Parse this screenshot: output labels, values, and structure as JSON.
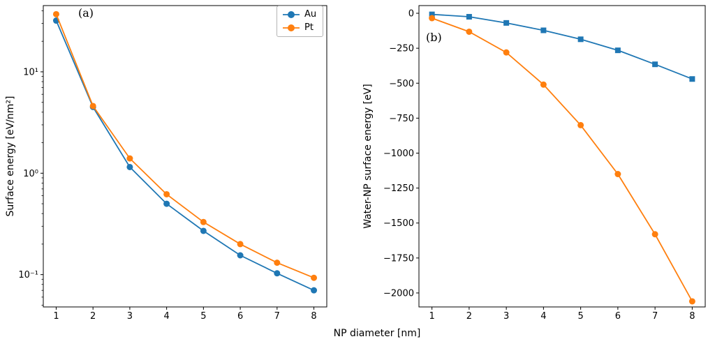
{
  "xlabel": "NP diameter [nm]",
  "legend": {
    "position": "upper right",
    "entries": [
      "Au",
      "Pt"
    ]
  },
  "colors": {
    "au": "#1f77b4",
    "pt": "#ff7f0e"
  },
  "chart_data": [
    {
      "type": "line",
      "panel_label": "(a)",
      "title": "",
      "xlabel": "NP diameter [nm]",
      "ylabel": "Surface energy [eV/nm²]",
      "yscale": "log",
      "grid": false,
      "xlim": [
        0.65,
        8.35
      ],
      "ylim": [
        0.048,
        45
      ],
      "x": [
        1,
        2,
        3,
        4,
        5,
        6,
        7,
        8
      ],
      "xticks": [
        1,
        2,
        3,
        4,
        5,
        6,
        7,
        8
      ],
      "xtick_labels": [
        "1",
        "2",
        "3",
        "4",
        "5",
        "6",
        "7",
        "8"
      ],
      "yticks": {
        "values": [
          10,
          1,
          0.1
        ],
        "labels": [
          "10¹",
          "10⁰",
          "10⁻¹"
        ]
      },
      "series": [
        {
          "name": "Au",
          "color": "#1f77b4",
          "marker": "circle",
          "values": [
            32,
            4.5,
            1.15,
            0.5,
            0.27,
            0.155,
            0.103,
            0.07
          ]
        },
        {
          "name": "Pt",
          "color": "#ff7f0e",
          "marker": "circle",
          "values": [
            37,
            4.6,
            1.4,
            0.62,
            0.33,
            0.2,
            0.131,
            0.093
          ]
        }
      ]
    },
    {
      "type": "line",
      "panel_label": "(b)",
      "title": "",
      "xlabel": "NP diameter [nm]",
      "ylabel": "Water-NP surface energy [eV]",
      "yscale": "linear",
      "grid": false,
      "xlim": [
        0.65,
        8.35
      ],
      "ylim": [
        -2100,
        55
      ],
      "x": [
        1,
        2,
        3,
        4,
        5,
        6,
        7,
        8
      ],
      "xticks": [
        1,
        2,
        3,
        4,
        5,
        6,
        7,
        8
      ],
      "xtick_labels": [
        "1",
        "2",
        "3",
        "4",
        "5",
        "6",
        "7",
        "8"
      ],
      "yticks": {
        "values": [
          0,
          -250,
          -500,
          -750,
          -1000,
          -1250,
          -1500,
          -1750,
          -2000
        ],
        "labels": [
          "0",
          "−250",
          "−500",
          "−750",
          "−1000",
          "−1250",
          "−1500",
          "−1750",
          "−2000"
        ]
      },
      "series": [
        {
          "name": "Au",
          "color": "#1f77b4",
          "marker": "square",
          "values": [
            -8,
            -25,
            -69,
            -122,
            -186,
            -265,
            -365,
            -470
          ]
        },
        {
          "name": "Pt",
          "color": "#ff7f0e",
          "marker": "circle",
          "values": [
            -35,
            -132,
            -280,
            -510,
            -800,
            -1150,
            -1580,
            -2060
          ]
        }
      ]
    }
  ]
}
